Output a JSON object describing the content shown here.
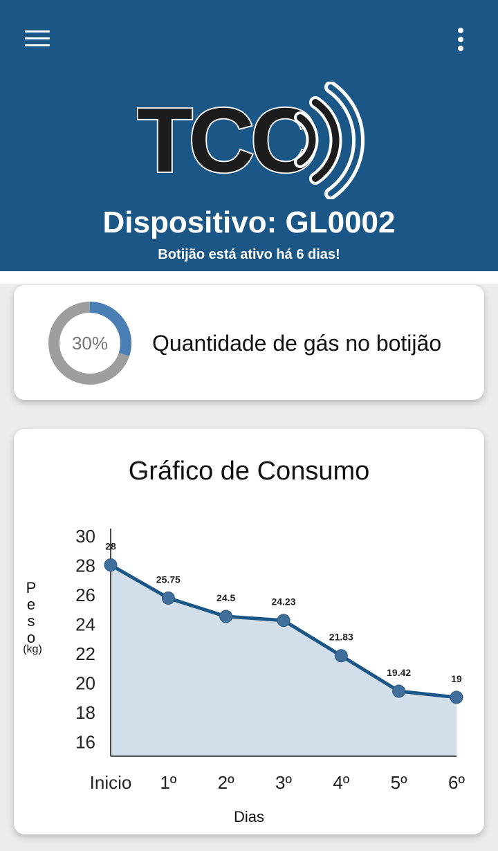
{
  "header": {
    "brand": "TCC",
    "device_title": "Dispositivo: GL0002",
    "device_subtitle": "Botijão está ativo há 6 dias!",
    "menu_icon": "hamburger-menu-icon",
    "more_icon": "more-vertical-icon",
    "background_color": "#1a5686"
  },
  "gas_card": {
    "percent_label": "30%",
    "level_fraction": 0.3,
    "label": "Quantidade de gás no botijão",
    "accent_color": "#4a7fb5",
    "track_color": "#9e9e9e"
  },
  "consumption_card": {
    "title": "Gráfico de Consumo",
    "ylabel_text": "P\ne\ns\no",
    "ylabel_unit": "(kg)",
    "xlabel": "Dias"
  },
  "chart_data": {
    "type": "area",
    "title": "Gráfico de Consumo",
    "xlabel": "Dias",
    "ylabel": "Peso (kg)",
    "categories": [
      "Inicio",
      "1º",
      "2º",
      "3º",
      "4º",
      "5º",
      "6º"
    ],
    "values": [
      28,
      25.75,
      24.5,
      24.23,
      21.83,
      19.42,
      19
    ],
    "data_labels": [
      "28",
      "25.75",
      "24.5",
      "24.23",
      "21.83",
      "19.42",
      "19"
    ],
    "y_ticks": [
      "30",
      "28",
      "26",
      "24",
      "22",
      "20",
      "18",
      "16"
    ],
    "ylim": [
      15,
      30
    ],
    "grid": false,
    "line_color": "#1a5686",
    "fill_color": "#d2dee9"
  }
}
